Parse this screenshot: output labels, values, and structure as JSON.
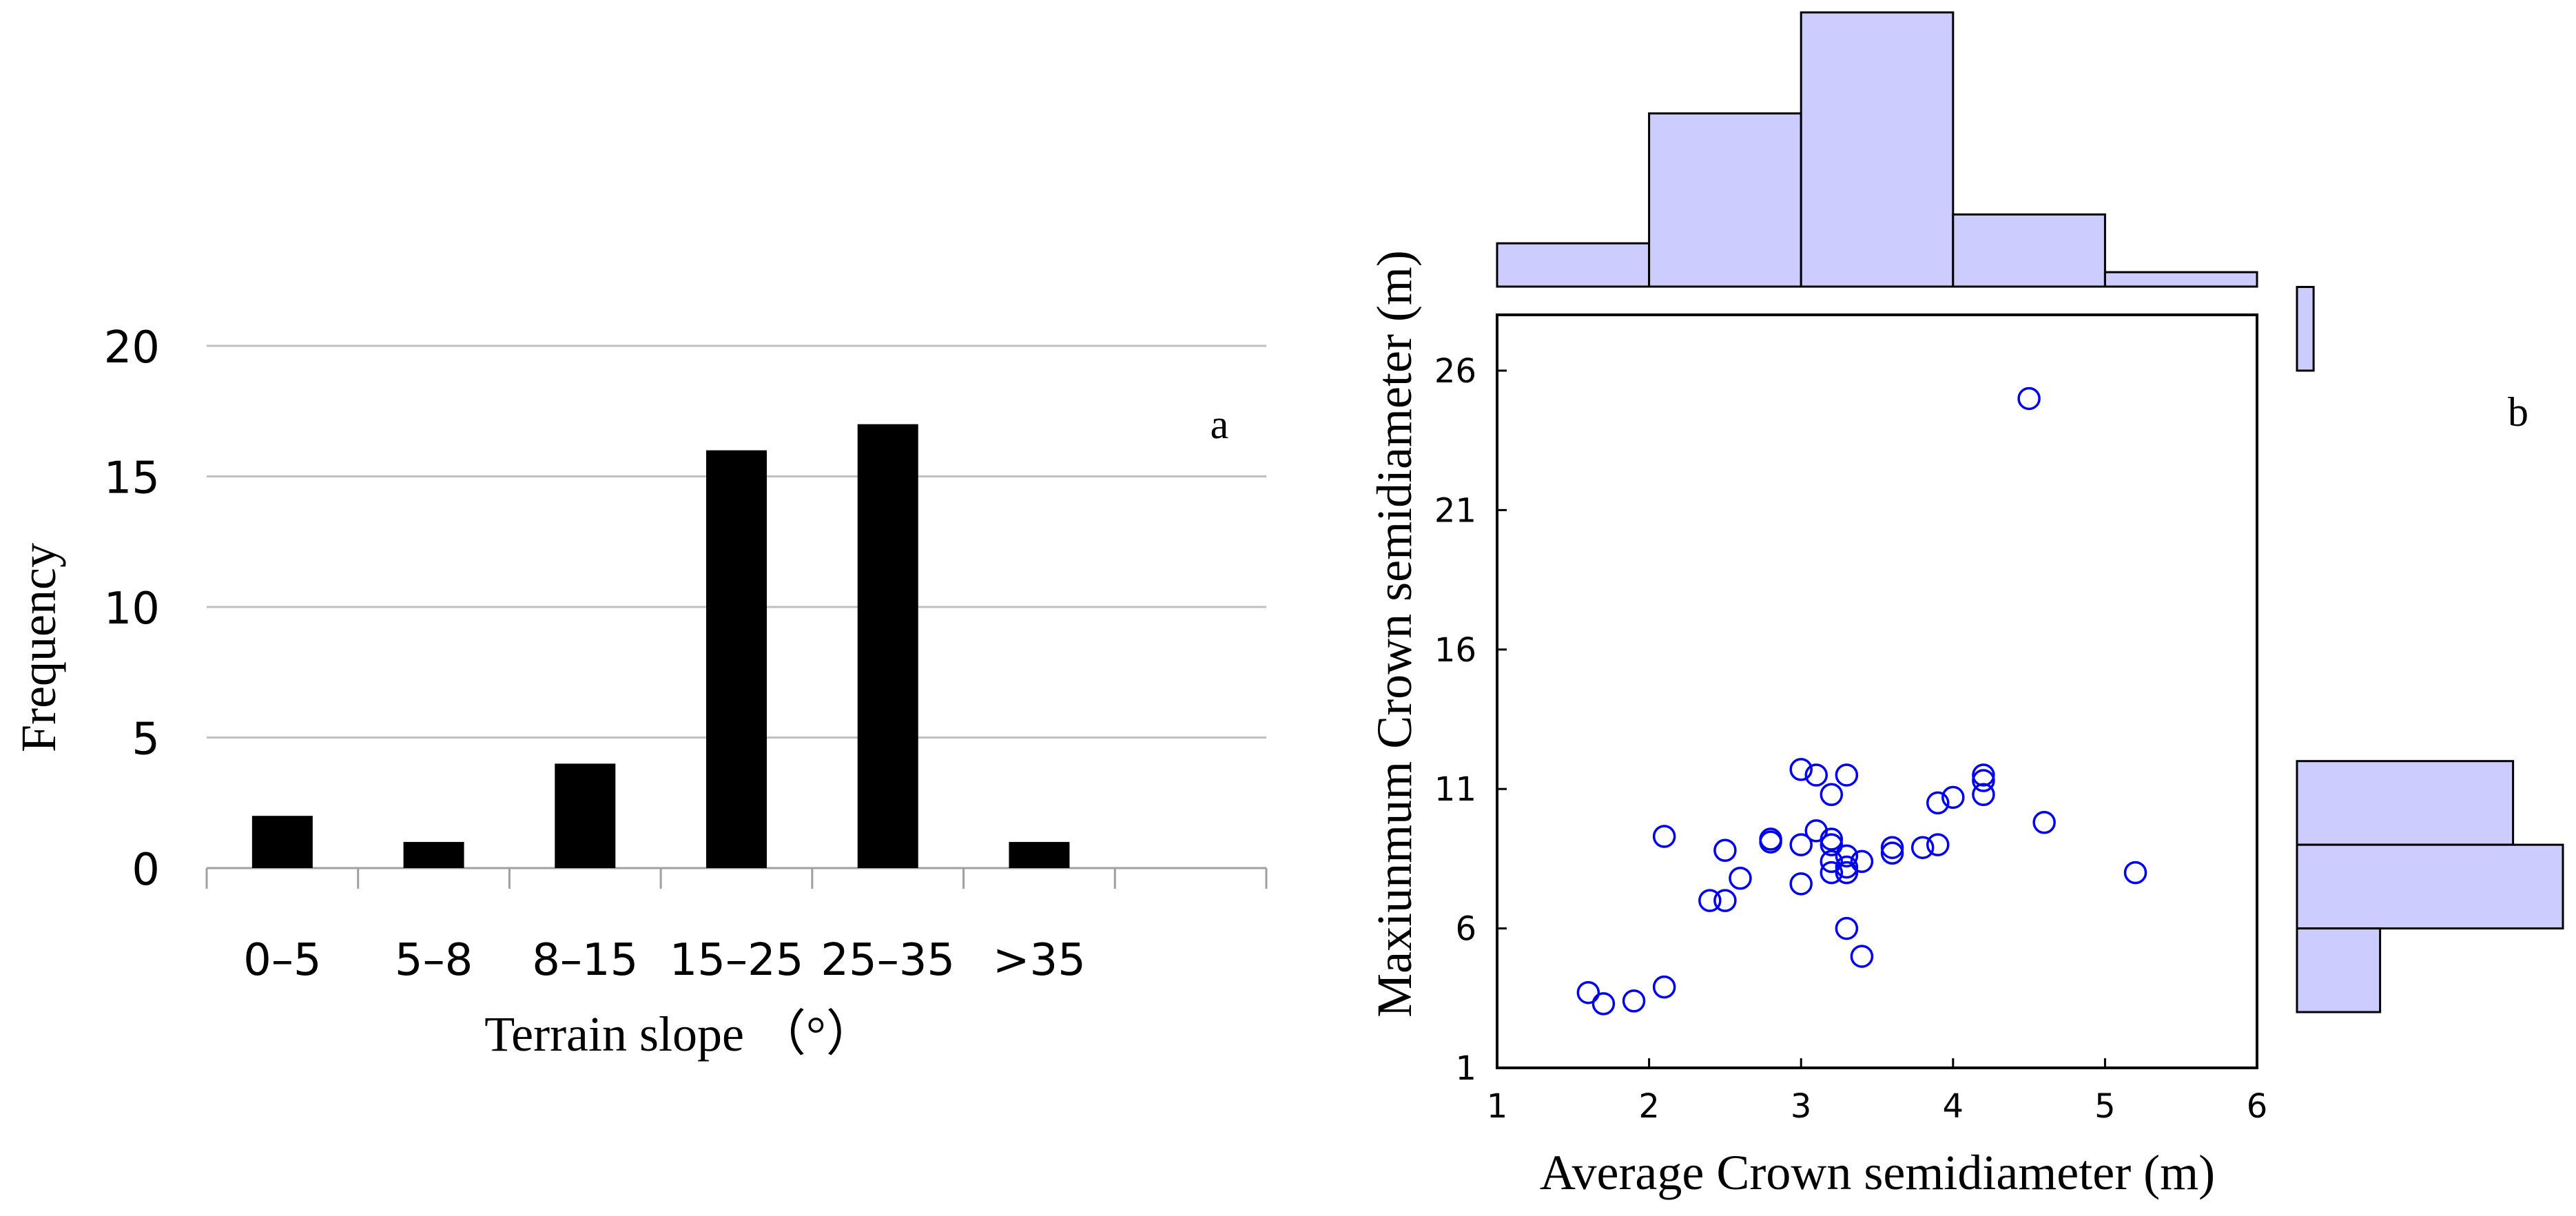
{
  "colors": {
    "bar_fill": "#000000",
    "grid": "#c0c0c0",
    "hist_fill": "#ccccff",
    "hist_stroke": "#000000",
    "point_stroke": "#0000ee",
    "axis": "#000000"
  },
  "chart_data": [
    {
      "type": "bar",
      "panel_label": "a",
      "categories": [
        "0–5",
        "5–8",
        "8–15",
        "15–25",
        "25–35",
        ">35"
      ],
      "values": [
        2,
        1,
        4,
        16,
        17,
        1
      ],
      "title": "",
      "xlabel": "Terrain slope （°）",
      "ylabel": "Frequency",
      "ylim": [
        0,
        20
      ],
      "yticks": [
        "0",
        "5",
        "10",
        "15",
        "20"
      ],
      "grid": true,
      "legend": "none"
    },
    {
      "type": "scatter",
      "panel_label": "b",
      "title": "",
      "xlabel": "Average Crown semidiameter (m)",
      "ylabel": "Maxiunmum Crown semidiameter (m)",
      "xlim": [
        1,
        6
      ],
      "ylim": [
        1,
        28
      ],
      "xticks": [
        "1",
        "2",
        "3",
        "4",
        "5",
        "6"
      ],
      "yticks": [
        "1",
        "6",
        "11",
        "16",
        "21",
        "26"
      ],
      "grid": false,
      "legend": "none",
      "points": [
        {
          "x": 4.5,
          "y": 25.0
        },
        {
          "x": 3.0,
          "y": 11.7
        },
        {
          "x": 3.1,
          "y": 11.5
        },
        {
          "x": 3.3,
          "y": 11.5
        },
        {
          "x": 4.2,
          "y": 11.5
        },
        {
          "x": 4.2,
          "y": 11.3
        },
        {
          "x": 3.2,
          "y": 10.8
        },
        {
          "x": 4.2,
          "y": 10.8
        },
        {
          "x": 4.0,
          "y": 10.7
        },
        {
          "x": 3.9,
          "y": 10.5
        },
        {
          "x": 4.6,
          "y": 9.8
        },
        {
          "x": 3.1,
          "y": 9.5
        },
        {
          "x": 2.1,
          "y": 9.3
        },
        {
          "x": 2.8,
          "y": 9.2
        },
        {
          "x": 2.8,
          "y": 9.1
        },
        {
          "x": 3.2,
          "y": 9.2
        },
        {
          "x": 3.0,
          "y": 9.0
        },
        {
          "x": 3.2,
          "y": 9.0
        },
        {
          "x": 3.6,
          "y": 8.9
        },
        {
          "x": 3.8,
          "y": 8.9
        },
        {
          "x": 3.9,
          "y": 9.0
        },
        {
          "x": 2.5,
          "y": 8.8
        },
        {
          "x": 3.6,
          "y": 8.7
        },
        {
          "x": 3.3,
          "y": 8.6
        },
        {
          "x": 3.2,
          "y": 8.4
        },
        {
          "x": 3.4,
          "y": 8.4
        },
        {
          "x": 3.3,
          "y": 8.2
        },
        {
          "x": 3.2,
          "y": 8.0
        },
        {
          "x": 3.3,
          "y": 8.0
        },
        {
          "x": 5.2,
          "y": 8.0
        },
        {
          "x": 2.6,
          "y": 7.8
        },
        {
          "x": 3.0,
          "y": 7.6
        },
        {
          "x": 2.4,
          "y": 7.0
        },
        {
          "x": 2.5,
          "y": 7.0
        },
        {
          "x": 3.3,
          "y": 6.0
        },
        {
          "x": 3.4,
          "y": 5.0
        },
        {
          "x": 2.1,
          "y": 3.9
        },
        {
          "x": 1.6,
          "y": 3.7
        },
        {
          "x": 1.9,
          "y": 3.4
        },
        {
          "x": 1.7,
          "y": 3.3
        }
      ],
      "x_histogram": {
        "bins": [
          [
            1,
            2
          ],
          [
            2,
            3
          ],
          [
            3,
            4
          ],
          [
            4,
            5
          ],
          [
            5,
            6
          ]
        ],
        "counts": [
          3,
          12,
          19,
          5,
          1
        ]
      },
      "y_histogram": {
        "bins": [
          [
            26,
            29
          ],
          [
            9,
            12
          ],
          [
            6,
            9
          ],
          [
            3,
            6
          ]
        ],
        "counts": [
          1,
          13,
          16,
          5
        ]
      }
    }
  ]
}
